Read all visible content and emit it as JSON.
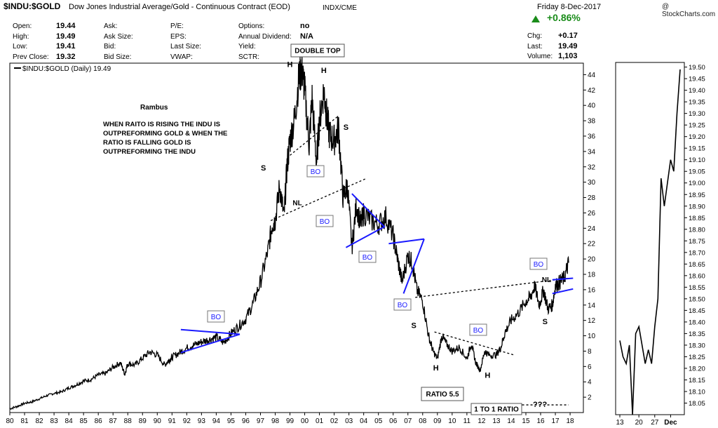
{
  "header": {
    "symbol": "$INDU:$GOLD",
    "description": "Dow Jones Industrial Average/Gold - Continuous Contract (EOD)",
    "exchange": "INDX/CME",
    "date": "Friday  8-Dec-2017",
    "change_pct": "+0.86%",
    "watermark": "@ StockCharts.com",
    "legend": "$INDU:$GOLD (Daily) 19.49"
  },
  "quote": {
    "col1": [
      [
        "Open:",
        "19.44"
      ],
      [
        "High:",
        "19.49"
      ],
      [
        "Low:",
        "19.41"
      ],
      [
        "Prev Close:",
        "19.32"
      ]
    ],
    "col2": [
      [
        "Ask:",
        ""
      ],
      [
        "Ask Size:",
        ""
      ],
      [
        "Bid:",
        ""
      ],
      [
        "Bid Size:",
        ""
      ]
    ],
    "col3": [
      [
        "P/E:",
        ""
      ],
      [
        "EPS:",
        ""
      ],
      [
        "Last Size:",
        ""
      ],
      [
        "VWAP:",
        ""
      ]
    ],
    "col4": [
      [
        "Options:",
        "no"
      ],
      [
        "Annual Dividend:",
        "N/A"
      ],
      [
        "Yield:",
        ""
      ],
      [
        "SCTR:",
        ""
      ]
    ],
    "col5": [
      [
        "Chg:",
        "+0.17"
      ],
      [
        "Last:",
        "19.49"
      ],
      [
        "Volume:",
        "1,103"
      ]
    ]
  },
  "annotations": {
    "author": "Rambus",
    "note": [
      "WHEN RAITO IS RISING THE INDU IS",
      "OUTPREFORMING GOLD & WHEN THE",
      "RATIO IS FALLING GOLD IS",
      "OUTPREFORMING THE INDU"
    ],
    "double_top": "DOUBLE TOP",
    "ratio_low": "RATIO 5.5",
    "one_to_one": "1 TO 1 RATIO",
    "question": "???",
    "neckline": "NL",
    "breakout": "BO",
    "head": "H",
    "shoulder": "S"
  },
  "colors": {
    "price": "#000000",
    "trendline": "#1a1aff",
    "up": "#1a8c1a",
    "axis": "#000000"
  },
  "chart_data": [
    {
      "type": "line",
      "title": "",
      "x_ticks": [
        "80",
        "81",
        "82",
        "83",
        "84",
        "85",
        "86",
        "87",
        "88",
        "89",
        "90",
        "91",
        "92",
        "93",
        "94",
        "95",
        "96",
        "97",
        "98",
        "99",
        "00",
        "01",
        "02",
        "03",
        "04",
        "05",
        "06",
        "07",
        "08",
        "09",
        "10",
        "11",
        "12",
        "13",
        "14",
        "15",
        "16",
        "17",
        "18"
      ],
      "y_ticks": [
        2,
        4,
        6,
        8,
        10,
        12,
        14,
        16,
        18,
        20,
        22,
        24,
        26,
        28,
        30,
        32,
        34,
        36,
        38,
        40,
        42,
        44
      ],
      "ylim": [
        0,
        45.5
      ],
      "xlim": [
        1980,
        2018.9
      ],
      "series": [
        {
          "name": "$INDU:$GOLD (Daily)",
          "x": [
            1980.0,
            1980.5,
            1981.0,
            1981.5,
            1982.0,
            1982.5,
            1983.0,
            1983.5,
            1984.0,
            1984.5,
            1985.0,
            1985.5,
            1986.0,
            1986.5,
            1987.0,
            1987.5,
            1987.8,
            1988.0,
            1988.5,
            1989.0,
            1989.5,
            1990.0,
            1990.5,
            1990.8,
            1991.0,
            1991.5,
            1992.0,
            1992.5,
            1993.0,
            1993.5,
            1994.0,
            1994.5,
            1995.0,
            1995.5,
            1996.0,
            1996.5,
            1997.0,
            1997.5,
            1997.8,
            1998.0,
            1998.3,
            1998.6,
            1998.8,
            1999.0,
            1999.3,
            1999.6,
            1999.8,
            2000.0,
            2000.3,
            2000.5,
            2000.8,
            2001.0,
            2001.3,
            2001.5,
            2001.7,
            2002.0,
            2002.3,
            2002.6,
            2002.9,
            2003.2,
            2003.5,
            2003.8,
            2004.0,
            2004.5,
            2005.0,
            2005.5,
            2006.0,
            2006.3,
            2006.6,
            2007.0,
            2007.3,
            2007.6,
            2008.0,
            2008.4,
            2008.7,
            2009.0,
            2009.3,
            2009.6,
            2010.0,
            2010.5,
            2011.0,
            2011.3,
            2011.6,
            2011.9,
            2012.2,
            2012.5,
            2013.0,
            2013.3,
            2013.6,
            2014.0,
            2014.5,
            2015.0,
            2015.3,
            2015.6,
            2015.9,
            2016.2,
            2016.5,
            2016.8,
            2017.0,
            2017.3,
            2017.6,
            2017.9
          ],
          "values": [
            0.5,
            0.8,
            1.2,
            1.4,
            1.8,
            2.2,
            2.5,
            2.7,
            3.2,
            3.6,
            4.1,
            4.3,
            4.9,
            5.1,
            5.9,
            6.5,
            5.0,
            6.4,
            6.2,
            7.1,
            7.9,
            7.5,
            6.2,
            6.8,
            7.2,
            7.8,
            8.4,
            8.8,
            9.2,
            9.5,
            9.8,
            9.1,
            10.3,
            11.2,
            12.2,
            14.2,
            17.0,
            21.0,
            24.5,
            25.0,
            29.5,
            25.5,
            32.0,
            35.5,
            38.0,
            43.5,
            44.8,
            42.0,
            35.0,
            41.0,
            32.5,
            38.0,
            42.0,
            38.5,
            36.0,
            35.5,
            37.0,
            28.0,
            29.5,
            21.5,
            27.0,
            24.5,
            26.0,
            25.0,
            24.5,
            25.5,
            23.0,
            20.0,
            17.0,
            20.5,
            19.5,
            16.0,
            14.5,
            10.0,
            8.0,
            7.0,
            10.0,
            9.0,
            8.0,
            8.5,
            7.0,
            9.0,
            6.5,
            5.5,
            8.0,
            7.5,
            7.5,
            8.5,
            10.5,
            12.0,
            13.0,
            14.5,
            15.0,
            16.5,
            14.0,
            16.0,
            13.5,
            14.0,
            16.5,
            17.0,
            17.5,
            19.5
          ]
        }
      ]
    },
    {
      "type": "line",
      "title": "",
      "x_ticks": [
        "13",
        "20",
        "27",
        "Dec"
      ],
      "y_ticks": [
        18.05,
        18.1,
        18.15,
        18.2,
        18.25,
        18.3,
        18.35,
        18.4,
        18.45,
        18.5,
        18.55,
        18.6,
        18.65,
        18.7,
        18.75,
        18.8,
        18.85,
        18.9,
        18.95,
        19.0,
        19.05,
        19.1,
        19.15,
        19.2,
        19.25,
        19.3,
        19.35,
        19.4,
        19.45,
        19.5
      ],
      "ylim": [
        18.0,
        19.52
      ],
      "series": [
        {
          "name": "$INDU:$GOLD (Daily)",
          "x": [
            0,
            1,
            2,
            3,
            4,
            5,
            6,
            7,
            8,
            9,
            10,
            11,
            12,
            13,
            14,
            15,
            16,
            17,
            18,
            19
          ],
          "values": [
            18.32,
            18.25,
            18.22,
            18.3,
            18.0,
            18.35,
            18.38,
            18.3,
            18.22,
            18.28,
            18.22,
            18.38,
            18.5,
            19.02,
            18.9,
            19.0,
            19.1,
            19.05,
            19.3,
            19.49
          ]
        }
      ]
    }
  ]
}
